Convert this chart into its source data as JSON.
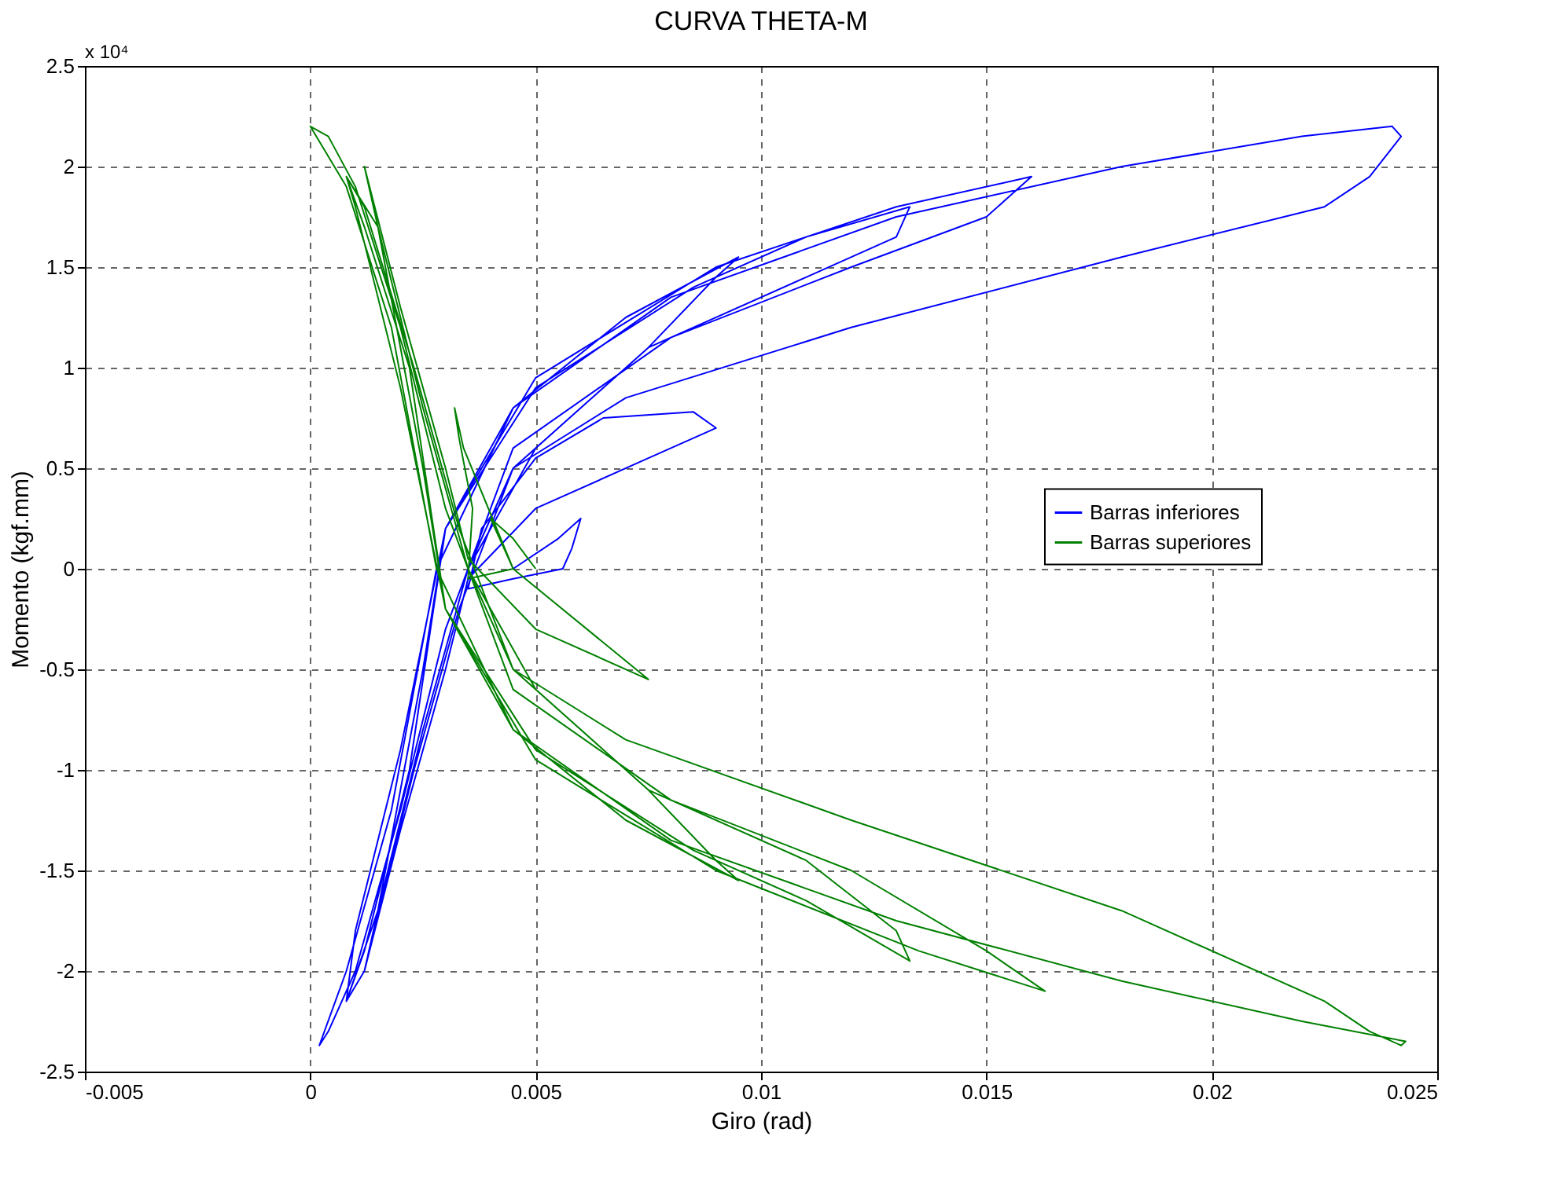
{
  "chart_data": {
    "type": "line",
    "title": "CURVA THETA-M",
    "xlabel": "Giro (rad)",
    "ylabel": "Momento (kgf.mm)",
    "annotations": [
      "x 10⁴"
    ],
    "xlim": [
      -0.005,
      0.025
    ],
    "xticks": [
      -0.005,
      0,
      0.005,
      0.01,
      0.015,
      0.02,
      0.025
    ],
    "ylim": [
      -2.5,
      2.5
    ],
    "yticks": [
      -2.5,
      -2,
      -1.5,
      -1,
      -0.5,
      0,
      0.5,
      1,
      1.5,
      2,
      2.5
    ],
    "grid": true,
    "legend": "right",
    "series": [
      {
        "name": "Barras inferiores",
        "color": "#0000ff",
        "x": [
          0.0045,
          0.0055,
          0.006,
          0.0058,
          0.0056,
          0.0045,
          0.0035,
          0.0038,
          0.005,
          0.0065,
          0.0085,
          0.009,
          0.0075,
          0.005,
          0.0035,
          0.003,
          0.002,
          0.0012,
          0.0015,
          0.0025,
          0.003,
          0.0045,
          0.007,
          0.0095,
          0.009,
          0.0075,
          0.005,
          0.0035,
          0.0025,
          0.0015,
          0.0008,
          0.001,
          0.002,
          0.003,
          0.005,
          0.0085,
          0.011,
          0.0133,
          0.013,
          0.011,
          0.0075,
          0.0045,
          0.0033,
          0.0023,
          0.0012,
          0.0008,
          0.0012,
          0.0022,
          0.003,
          0.005,
          0.009,
          0.013,
          0.016,
          0.015,
          0.012,
          0.008,
          0.0045,
          0.003,
          0.002,
          0.001,
          0.0004,
          0.0002,
          0.0008,
          0.0018,
          0.0028,
          0.0045,
          0.008,
          0.013,
          0.018,
          0.022,
          0.024,
          0.0242,
          0.0235,
          0.0225,
          0.018,
          0.012,
          0.007,
          0.0045,
          0.0035
        ],
        "values": [
          0,
          0.15,
          0.25,
          0.1,
          0,
          -0.05,
          -0.1,
          0.2,
          0.55,
          0.75,
          0.78,
          0.7,
          0.55,
          0.3,
          -0.05,
          -0.5,
          -1.3,
          -2.0,
          -1.7,
          -0.5,
          0.2,
          0.8,
          1.25,
          1.55,
          1.45,
          1.1,
          0.6,
          0,
          -0.8,
          -1.7,
          -2.15,
          -1.8,
          -0.9,
          0.2,
          0.9,
          1.4,
          1.65,
          1.8,
          1.65,
          1.45,
          1.1,
          0.5,
          -0.2,
          -1.0,
          -2.0,
          -2.15,
          -1.9,
          -1.0,
          0.2,
          0.95,
          1.5,
          1.8,
          1.95,
          1.75,
          1.5,
          1.15,
          0.6,
          -0.3,
          -1.2,
          -2.0,
          -2.3,
          -2.37,
          -2.0,
          -1.2,
          0,
          0.8,
          1.35,
          1.75,
          2.0,
          2.15,
          2.2,
          2.15,
          1.95,
          1.8,
          1.55,
          1.2,
          0.85,
          0.5,
          0
        ]
      },
      {
        "name": "Barras superiores",
        "color": "#008000",
        "x": [
          0.005,
          0.0045,
          0.004,
          0.0042,
          0.0044,
          0.0045,
          0.0035,
          0.0036,
          0.0033,
          0.0032,
          0.0034,
          0.0045,
          0.0075,
          0.005,
          0.0035,
          0.003,
          0.002,
          0.0012,
          0.0015,
          0.0025,
          0.003,
          0.0045,
          0.007,
          0.0095,
          0.009,
          0.0075,
          0.005,
          0.0035,
          0.0025,
          0.0015,
          0.0008,
          0.001,
          0.002,
          0.003,
          0.005,
          0.0085,
          0.011,
          0.0133,
          0.013,
          0.011,
          0.0075,
          0.0045,
          0.0033,
          0.0023,
          0.0012,
          0.0008,
          0.0012,
          0.0022,
          0.003,
          0.005,
          0.009,
          0.0135,
          0.0163,
          0.015,
          0.012,
          0.008,
          0.0045,
          0.003,
          0.002,
          0.001,
          0.0004,
          0.0,
          0.0008,
          0.0018,
          0.0028,
          0.0045,
          0.008,
          0.013,
          0.018,
          0.022,
          0.0243,
          0.0242,
          0.0235,
          0.0225,
          0.018,
          0.012,
          0.007,
          0.0045,
          0.0035
        ],
        "values": [
          0,
          0.15,
          0.25,
          0.15,
          0.05,
          0,
          -0.05,
          0.3,
          0.65,
          0.8,
          0.6,
          0,
          -0.55,
          -0.3,
          0.05,
          0.5,
          1.3,
          2.0,
          1.7,
          0.5,
          -0.2,
          -0.8,
          -1.25,
          -1.55,
          -1.45,
          -1.1,
          -0.6,
          0,
          0.8,
          1.7,
          1.95,
          1.8,
          0.9,
          -0.2,
          -0.9,
          -1.4,
          -1.65,
          -1.95,
          -1.8,
          -1.45,
          -1.1,
          -0.5,
          0.2,
          1.0,
          1.8,
          1.95,
          1.7,
          1.0,
          -0.2,
          -0.95,
          -1.5,
          -1.9,
          -2.1,
          -1.9,
          -1.5,
          -1.15,
          -0.6,
          0.3,
          1.2,
          1.9,
          2.15,
          2.2,
          1.9,
          1.2,
          0,
          -0.8,
          -1.35,
          -1.75,
          -2.05,
          -2.25,
          -2.35,
          -2.37,
          -2.3,
          -2.15,
          -1.7,
          -1.25,
          -0.85,
          -0.5,
          0
        ]
      }
    ]
  }
}
